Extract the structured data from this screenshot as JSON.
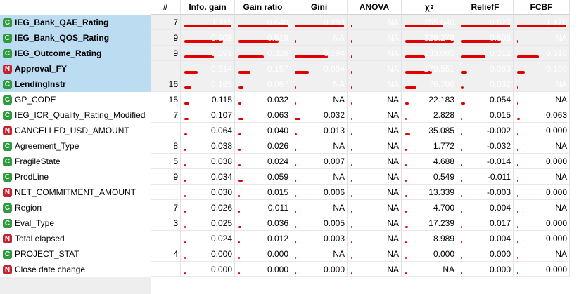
{
  "columns": [
    "#",
    "Info. gain",
    "Gain ratio",
    "Gini",
    "ANOVA",
    "χ",
    "ReliefF",
    "FCBF"
  ],
  "chi_sup": "2",
  "rows": [
    {
      "type": "C",
      "name": "IEG_Bank_QAE_Rating",
      "selected": true,
      "count": "7",
      "values": [
        "1.115",
        "0.640",
        "0.288",
        "NA",
        "255.640",
        "0.627",
        "1.170"
      ]
    },
    {
      "type": "C",
      "name": "IEG_Bank_QOS_Rating",
      "selected": true,
      "count": "9",
      "values": [
        "0.909",
        "0.519",
        "NA",
        "NA",
        "328.278",
        "0.508",
        "NA"
      ]
    },
    {
      "type": "C",
      "name": "IEG_Outcome_Rating",
      "selected": true,
      "count": "9",
      "values": [
        "0.691",
        "0.328",
        "0.194",
        "NA",
        "133.095",
        "0.312",
        "0.518"
      ]
    },
    {
      "type": "N",
      "name": "Approval_FY",
      "selected": true,
      "count": "",
      "values": [
        "0.314",
        "0.157",
        "0.084",
        "NA",
        "179.551",
        "0.083",
        "0.190"
      ]
    },
    {
      "type": "C",
      "name": "LendingInstr",
      "selected": true,
      "count": "16",
      "values": [
        "0.165",
        "0.067",
        "NA",
        "NA",
        "76.706",
        "0.032",
        "NA"
      ]
    },
    {
      "type": "C",
      "name": "GP_CODE",
      "selected": false,
      "count": "15",
      "values": [
        "0.115",
        "0.032",
        "NA",
        "NA",
        "22.183",
        "0.054",
        "NA"
      ]
    },
    {
      "type": "C",
      "name": "IEG_ICR_Quality_Rating_Modified",
      "selected": false,
      "count": "7",
      "values": [
        "0.107",
        "0.063",
        "0.032",
        "NA",
        "2.828",
        "0.015",
        "0.063"
      ]
    },
    {
      "type": "N",
      "name": "CANCELLED_USD_AMOUNT",
      "selected": false,
      "count": "",
      "values": [
        "0.064",
        "0.040",
        "0.013",
        "NA",
        "35.085",
        "-0.002",
        "0.000"
      ]
    },
    {
      "type": "C",
      "name": "Agreement_Type",
      "selected": false,
      "count": "8",
      "values": [
        "0.038",
        "0.026",
        "NA",
        "NA",
        "1.772",
        "-0.032",
        "NA"
      ]
    },
    {
      "type": "C",
      "name": "FragileState",
      "selected": false,
      "count": "5",
      "values": [
        "0.038",
        "0.024",
        "0.007",
        "NA",
        "4.688",
        "-0.014",
        "0.000"
      ]
    },
    {
      "type": "C",
      "name": "ProdLine",
      "selected": false,
      "count": "9",
      "values": [
        "0.034",
        "0.059",
        "NA",
        "NA",
        "0.549",
        "-0.011",
        "NA"
      ]
    },
    {
      "type": "N",
      "name": "NET_COMMITMENT_AMOUNT",
      "selected": false,
      "count": "",
      "values": [
        "0.030",
        "0.015",
        "0.006",
        "NA",
        "13.339",
        "-0.003",
        "0.000"
      ]
    },
    {
      "type": "C",
      "name": "Region",
      "selected": false,
      "count": "7",
      "values": [
        "0.026",
        "0.011",
        "NA",
        "NA",
        "4.700",
        "0.004",
        "NA"
      ]
    },
    {
      "type": "C",
      "name": "Eval_Type",
      "selected": false,
      "count": "3",
      "values": [
        "0.025",
        "0.036",
        "0.005",
        "NA",
        "17.239",
        "0.017",
        "0.000"
      ]
    },
    {
      "type": "N",
      "name": "Total elapsed",
      "selected": false,
      "count": "",
      "values": [
        "0.024",
        "0.012",
        "0.003",
        "NA",
        "8.989",
        "0.004",
        "0.000"
      ]
    },
    {
      "type": "C",
      "name": "PROJECT_STAT",
      "selected": false,
      "count": "4",
      "values": [
        "0.000",
        "0.000",
        "NA",
        "NA",
        "0.000",
        "0.000",
        "NA"
      ]
    },
    {
      "type": "N",
      "name": "Close date change",
      "selected": false,
      "count": "",
      "values": [
        "0.000",
        "0.000",
        "0.000",
        "NA",
        "NA",
        "0.000",
        "0.000"
      ]
    }
  ],
  "colors": {
    "selection": "#bcdcf2",
    "bar": "#e00000",
    "continuous": "#2d9a3c",
    "numeric": "#c2232f"
  }
}
